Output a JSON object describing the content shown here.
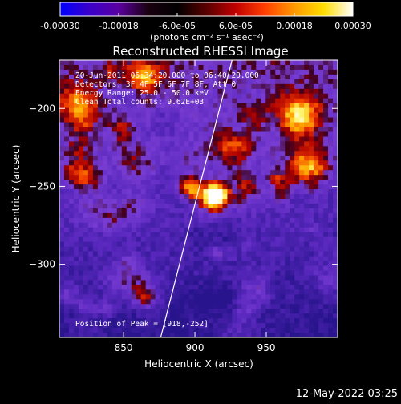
{
  "colorbar": {
    "ticks": [
      {
        "value": -0.0003,
        "label": "-0.00030"
      },
      {
        "value": -0.00018,
        "label": "-0.00018"
      },
      {
        "value": -6e-05,
        "label": "-6.0e-05"
      },
      {
        "value": 6e-05,
        "label": "6.0e-05"
      },
      {
        "value": 0.00018,
        "label": "0.00018"
      },
      {
        "value": 0.0003,
        "label": "0.00030"
      }
    ],
    "units_label": "(photons cm⁻² s⁻¹ asec⁻²)",
    "colors": [
      "#0000ff",
      "#3a00c8",
      "#5a00a0",
      "#1a0010",
      "#000000",
      "#5a0000",
      "#c00000",
      "#ff4000",
      "#ff9900",
      "#ffdd00",
      "#ffffff"
    ]
  },
  "chart_data": {
    "type": "heatmap",
    "title": "Reconstructed RHESSI Image",
    "xlabel": "Heliocentric X (arcsec)",
    "ylabel": "Heliocentric Y (arcsec)",
    "xlim": [
      805,
      1000
    ],
    "ylim": [
      -347,
      -169
    ],
    "xticks": [
      850,
      900,
      950
    ],
    "yticks": [
      -200,
      -250,
      -300
    ],
    "color_range": [
      -0.0003,
      0.0003
    ],
    "limb_line": [
      [
        876,
        -347
      ],
      [
        926,
        -169
      ]
    ],
    "peak": {
      "x": 918,
      "y": -252
    }
  },
  "annotations": {
    "line1": "20-Jun-2011 06:34:20.000 to 06:40:20.000",
    "line2": "Detectors: 3F 4F 5F 6F 7F 8F, Att 0",
    "line3": "Energy Range: 25.0 - 50.0 keV",
    "line4": "Clean     Total counts: 9.62E+03",
    "peak_text": "Position of Peak = [918,-252]"
  },
  "footer_date": "12-May-2022 03:25"
}
